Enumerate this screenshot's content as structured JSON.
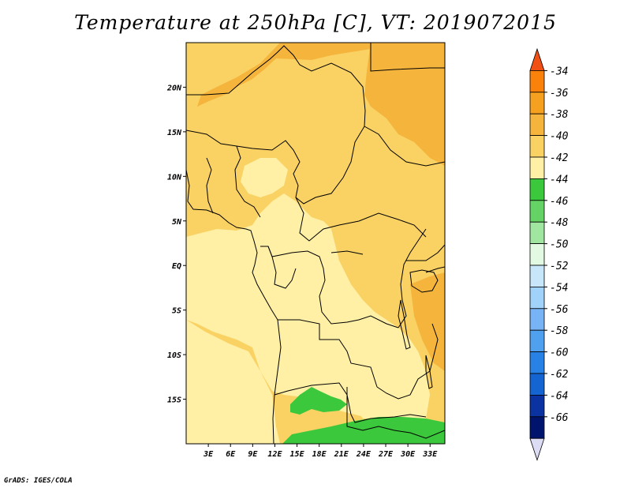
{
  "title": "Temperature at 250hPa [C], VT: 2019072015",
  "credit": "GrADS: IGES/COLA",
  "map": {
    "lon_range": [
      0,
      35
    ],
    "lat_range": [
      -20,
      25
    ],
    "x_ticks": [
      "3E",
      "6E",
      "9E",
      "12E",
      "15E",
      "18E",
      "21E",
      "24E",
      "27E",
      "30E",
      "33E"
    ],
    "y_ticks": [
      "20N",
      "15N",
      "10N",
      "5N",
      "EQ",
      "5S",
      "10S",
      "15S"
    ],
    "fill_colors": {
      "level_38_40": "#f5b53c",
      "level_40_42": "#fad264",
      "level_42_44": "#fff0a5",
      "level_44_46": "#3cc83c"
    }
  },
  "colorbar": {
    "labels": [
      "-34",
      "-36",
      "-38",
      "-40",
      "-42",
      "-44",
      "-46",
      "-48",
      "-50",
      "-52",
      "-54",
      "-56",
      "-58",
      "-60",
      "-62",
      "-64",
      "-66"
    ],
    "colors": [
      "#f05014",
      "#fa820a",
      "#f5a01e",
      "#f5b53c",
      "#fad264",
      "#fff0a5",
      "#3cc83c",
      "#64d264",
      "#a0e6a0",
      "#e1fae1",
      "#c8e6fa",
      "#a0d2fa",
      "#78b4f5",
      "#50a0f0",
      "#2882e6",
      "#1464d2",
      "#0a32a0",
      "#00146e",
      "#dcdcf5"
    ]
  }
}
